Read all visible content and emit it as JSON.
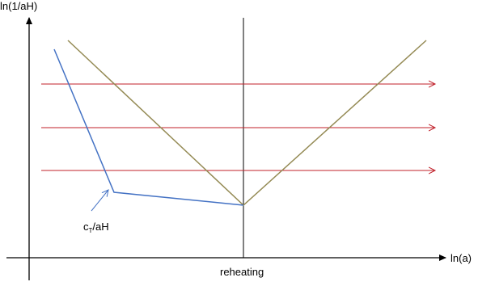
{
  "axes": {
    "y_label": "ln(1/aH)",
    "x_label": "ln(a)",
    "axis_color": "#000000"
  },
  "vertical_marker": {
    "label": "reheating",
    "color": "#000000"
  },
  "curves": {
    "blue_curve": {
      "color": "#4472C4"
    },
    "olive_curve": {
      "color": "#948A54"
    }
  },
  "horizontal_arrows": {
    "count": 3,
    "color": "#C0202A"
  },
  "annotation": {
    "prefix": "c",
    "subscript": "T",
    "suffix": "/aH",
    "arrow_color": "#4472C4"
  }
}
